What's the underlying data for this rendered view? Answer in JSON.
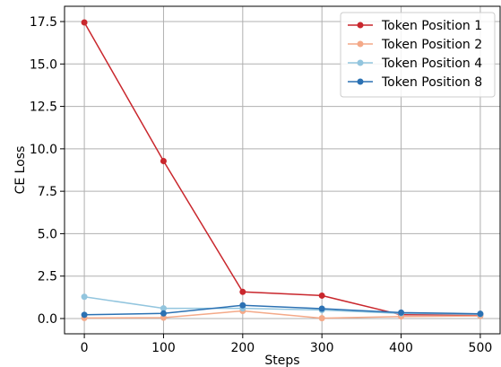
{
  "chart_data": {
    "type": "line",
    "xlabel": "Steps",
    "ylabel": "CE Loss",
    "x": [
      0,
      100,
      200,
      300,
      400,
      500
    ],
    "xticks": [
      "0",
      "100",
      "200",
      "300",
      "400",
      "500"
    ],
    "yticks": [
      "0.0",
      "2.5",
      "5.0",
      "7.5",
      "10.0",
      "12.5",
      "15.0",
      "17.5"
    ],
    "xlim": [
      -25,
      525
    ],
    "ylim": [
      -0.9,
      18.4
    ],
    "grid": true,
    "legend_position": "top-right",
    "series": [
      {
        "name": "Token Position 1",
        "color": "#c9272d",
        "values": [
          17.45,
          9.28,
          1.57,
          1.35,
          0.22,
          0.22
        ]
      },
      {
        "name": "Token Position 2",
        "color": "#f4a988",
        "values": [
          0.03,
          0.05,
          0.45,
          0.02,
          0.12,
          0.15
        ]
      },
      {
        "name": "Token Position 4",
        "color": "#92c5de",
        "values": [
          1.28,
          0.6,
          0.6,
          0.5,
          0.3,
          0.25
        ]
      },
      {
        "name": "Token Position 8",
        "color": "#2b71b3",
        "values": [
          0.22,
          0.3,
          0.78,
          0.58,
          0.35,
          0.28
        ]
      }
    ]
  }
}
